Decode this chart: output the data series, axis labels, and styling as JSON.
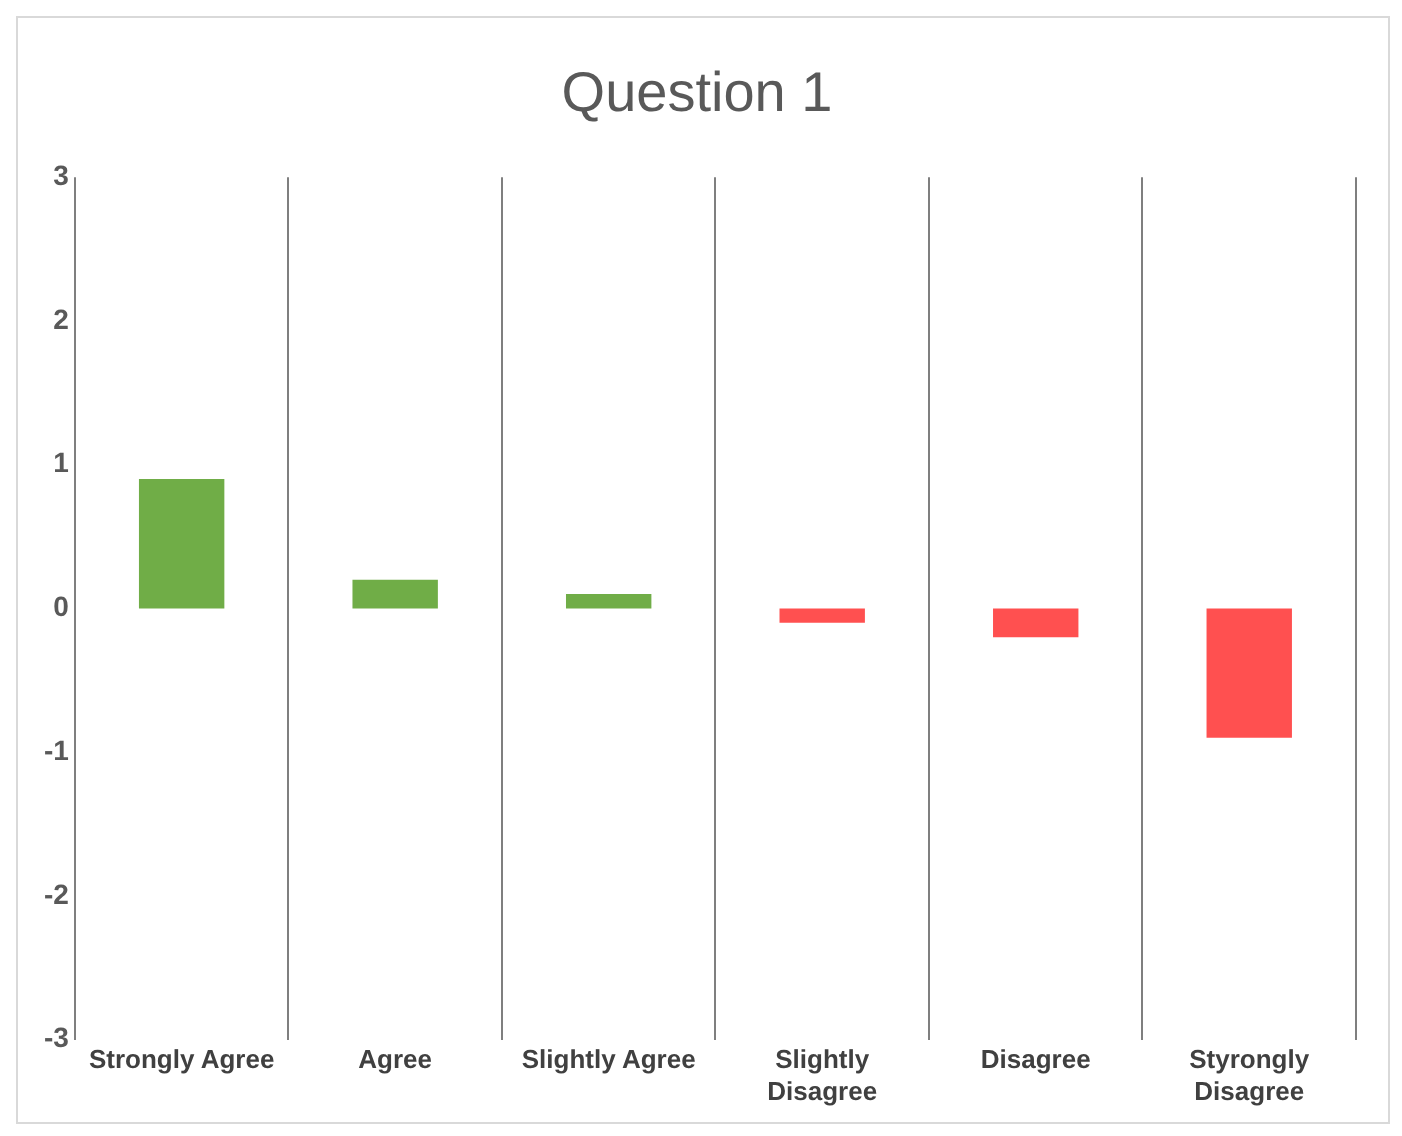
{
  "chart_data": {
    "type": "bar",
    "title": "Question 1",
    "categories": [
      "Strongly Agree",
      "Agree",
      "Slightly Agree",
      "Slightly Disagree",
      "Disagree",
      "Styrongly Disagree"
    ],
    "values": [
      0.9,
      0.2,
      0.1,
      -0.1,
      -0.2,
      -0.9
    ],
    "colors": [
      "#70ad47",
      "#70ad47",
      "#70ad47",
      "#ff5050",
      "#ff5050",
      "#ff5050"
    ],
    "ylim": [
      -3,
      3
    ],
    "yticks": [
      -3,
      -2,
      -1,
      0,
      1,
      2,
      3
    ],
    "grid": "x",
    "legend": false
  }
}
